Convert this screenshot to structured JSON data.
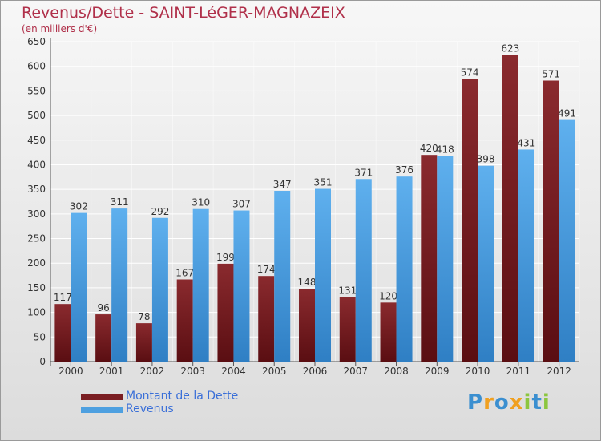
{
  "title": "Revenus/Dette - SAINT-LéGER-MAGNAZEIX",
  "subtitle": "(en milliers d'€)",
  "logo": {
    "letters": [
      "P",
      "r",
      "o",
      "x",
      "i",
      "t",
      "i"
    ],
    "colors": [
      "#3b8fd0",
      "#f0a020",
      "#3b8fd0",
      "#f0a020",
      "#8cc63f",
      "#3b8fd0",
      "#8cc63f"
    ]
  },
  "colors": {
    "debt": "#7a1e22",
    "revenue": "#4ea0e0",
    "title": "#b0304a",
    "grid": "#ffffff"
  },
  "chart_data": {
    "type": "bar",
    "categories": [
      "2000",
      "2001",
      "2002",
      "2003",
      "2004",
      "2005",
      "2006",
      "2007",
      "2008",
      "2009",
      "2010",
      "2011",
      "2012"
    ],
    "series": [
      {
        "name": "Montant de la Dette",
        "values": [
          117,
          96,
          78,
          167,
          199,
          174,
          148,
          131,
          120,
          420,
          574,
          623,
          571
        ]
      },
      {
        "name": "Revenus",
        "values": [
          302,
          311,
          292,
          310,
          307,
          347,
          351,
          371,
          376,
          418,
          398,
          431,
          491
        ]
      }
    ],
    "ylim": [
      0,
      650
    ],
    "yticks": [
      0,
      50,
      100,
      150,
      200,
      250,
      300,
      350,
      400,
      450,
      500,
      550,
      600,
      650
    ],
    "grid": true,
    "legend_position": "bottom-left"
  }
}
